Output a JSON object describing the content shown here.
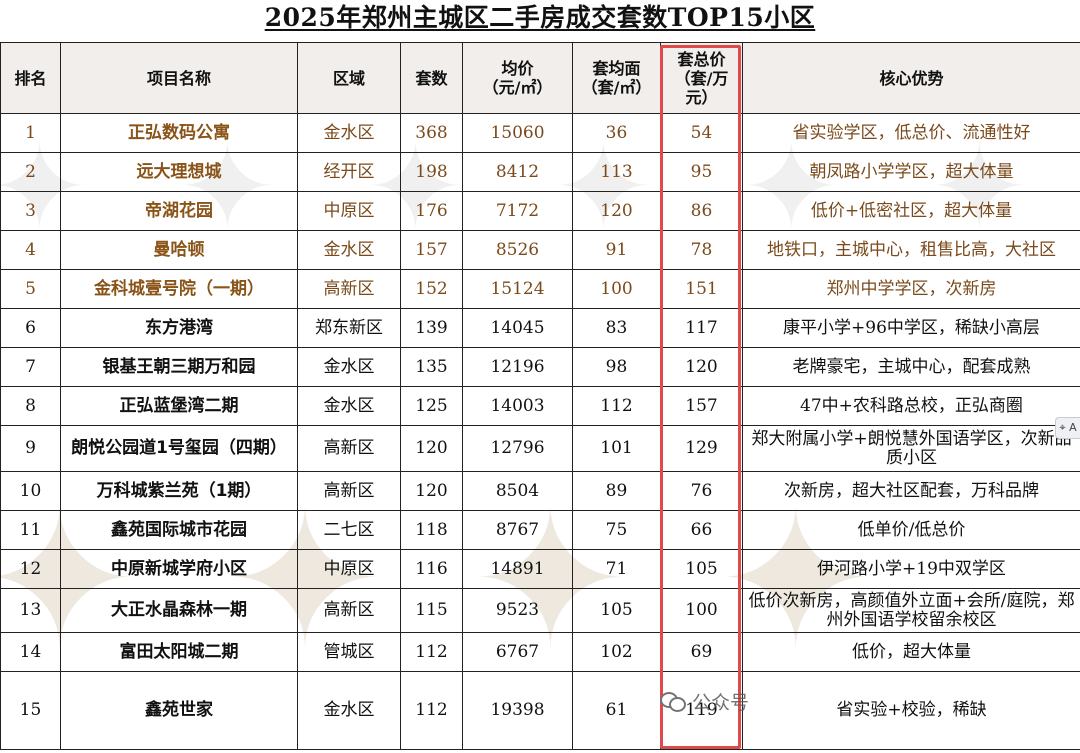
{
  "title": "2025年郑州主城区二手房成交套数TOP15小区",
  "headers": {
    "rank": "排名",
    "name": "项目名称",
    "district": "区域",
    "count": "套数",
    "avg_price": [
      "均价",
      "（元/㎡）"
    ],
    "avg_area": [
      "套均面",
      "（套/㎡）"
    ],
    "total_price": [
      "套总价",
      "（套/万元）"
    ],
    "advantage": "核心优势"
  },
  "rows": [
    {
      "rank": "1",
      "name": "正弘数码公寓",
      "district": "金水区",
      "count": "368",
      "price": "15060",
      "area": "36",
      "total": "54",
      "adv": "省实验学区，低总价、流通性好"
    },
    {
      "rank": "2",
      "name": "远大理想城",
      "district": "经开区",
      "count": "198",
      "price": "8412",
      "area": "113",
      "total": "95",
      "adv": "朝凤路小学学区，超大体量"
    },
    {
      "rank": "3",
      "name": "帝湖花园",
      "district": "中原区",
      "count": "176",
      "price": "7172",
      "area": "120",
      "total": "86",
      "adv": "低价+低密社区，超大体量"
    },
    {
      "rank": "4",
      "name": "曼哈顿",
      "district": "金水区",
      "count": "157",
      "price": "8526",
      "area": "91",
      "total": "78",
      "adv": "地铁口，主城中心，租售比高，大社区"
    },
    {
      "rank": "5",
      "name": "金科城壹号院（一期）",
      "district": "高新区",
      "count": "152",
      "price": "15124",
      "area": "100",
      "total": "151",
      "adv": "郑州中学学区，次新房"
    },
    {
      "rank": "6",
      "name": "东方港湾",
      "district": "郑东新区",
      "count": "139",
      "price": "14045",
      "area": "83",
      "total": "117",
      "adv": "康平小学+96中学区，稀缺小高层"
    },
    {
      "rank": "7",
      "name": "银基王朝三期万和园",
      "district": "金水区",
      "count": "135",
      "price": "12196",
      "area": "98",
      "total": "120",
      "adv": "老牌豪宅，主城中心，配套成熟"
    },
    {
      "rank": "8",
      "name": "正弘蓝堡湾二期",
      "district": "金水区",
      "count": "125",
      "price": "14003",
      "area": "112",
      "total": "157",
      "adv": "47中+农科路总校，正弘商圈"
    },
    {
      "rank": "9",
      "name": "朗悦公园道1号玺园（四期）",
      "district": "高新区",
      "count": "120",
      "price": "12796",
      "area": "101",
      "total": "129",
      "adv": "郑大附属小学+朗悦慧外国语学区，次新品质小区"
    },
    {
      "rank": "10",
      "name": "万科城紫兰苑（1期）",
      "district": "高新区",
      "count": "120",
      "price": "8504",
      "area": "89",
      "total": "76",
      "adv": "次新房，超大社区配套，万科品牌"
    },
    {
      "rank": "11",
      "name": "鑫苑国际城市花园",
      "district": "二七区",
      "count": "118",
      "price": "8767",
      "area": "75",
      "total": "66",
      "adv": "低单价/低总价"
    },
    {
      "rank": "12",
      "name": "中原新城学府小区",
      "district": "中原区",
      "count": "116",
      "price": "14891",
      "area": "71",
      "total": "105",
      "adv": "伊河路小学+19中双学区"
    },
    {
      "rank": "13",
      "name": "大正水晶森林一期",
      "district": "高新区",
      "count": "115",
      "price": "9523",
      "area": "105",
      "total": "100",
      "adv": "低价次新房，高颜值外立面+会所/庭院，郑州外国语学校留余校区"
    },
    {
      "rank": "14",
      "name": "富田太阳城二期",
      "district": "管城区",
      "count": "112",
      "price": "6767",
      "area": "102",
      "total": "69",
      "adv": "低价，超大体量"
    },
    {
      "rank": "15",
      "name": "鑫苑世家",
      "district": "金水区",
      "count": "112",
      "price": "19398",
      "area": "61",
      "total": "119",
      "adv": "省实验+校验，稀缺"
    }
  ],
  "watermark_account": "公众号",
  "float_button_label": "⌖ A",
  "colors": {
    "highlight": "#e04a4a",
    "top5_text": "#8a5418",
    "header_bg": "#f1eeec"
  }
}
